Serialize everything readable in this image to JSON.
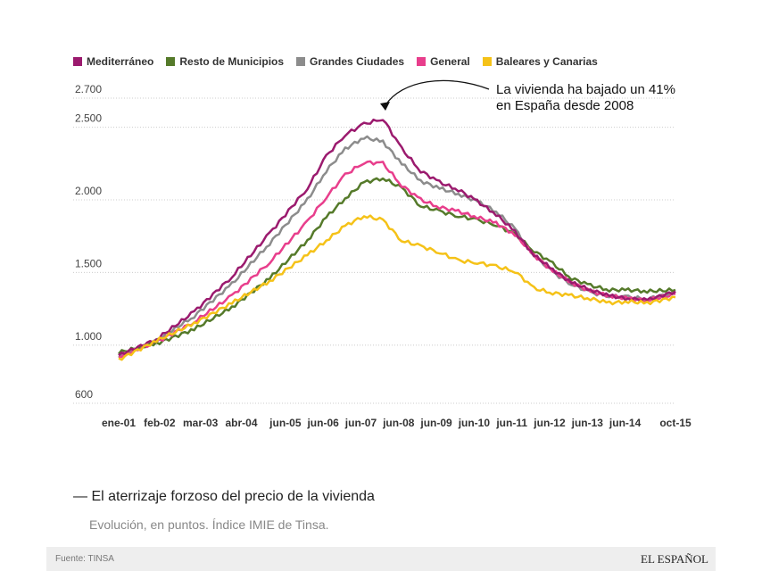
{
  "chart_data": {
    "type": "line",
    "title": "El aterrizaje forzoso del precio de la vivienda",
    "subtitle": "Evolución, en puntos. Índice IMIE de Tinsa.",
    "source": "Fuente: TINSA",
    "brand": "EL ESPAÑOL",
    "annotation": [
      "La vivienda ha bajado un 41%",
      "en España desde 2008"
    ],
    "legend_position": "top-left",
    "grid": true,
    "ylim": [
      600,
      2700
    ],
    "y_ticks": [
      {
        "v": 2700,
        "label": "2.700"
      },
      {
        "v": 2500,
        "label": "2.500"
      },
      {
        "v": 2000,
        "label": "2.000"
      },
      {
        "v": 1500,
        "label": "1.500"
      },
      {
        "v": 1000,
        "label": "1.000"
      },
      {
        "v": 600,
        "label": "600"
      }
    ],
    "x_ticks": [
      {
        "d": "2001-01",
        "label": "ene-01"
      },
      {
        "d": "2002-02",
        "label": "feb-02"
      },
      {
        "d": "2003-03",
        "label": "mar-03"
      },
      {
        "d": "2004-04",
        "label": "abr-04"
      },
      {
        "d": "2005-06",
        "label": "jun-05"
      },
      {
        "d": "2006-06",
        "label": "jun-06"
      },
      {
        "d": "2007-06",
        "label": "jun-07"
      },
      {
        "d": "2008-06",
        "label": "jun-08"
      },
      {
        "d": "2009-06",
        "label": "jun-09"
      },
      {
        "d": "2010-06",
        "label": "jun-10"
      },
      {
        "d": "2011-06",
        "label": "jun-11"
      },
      {
        "d": "2012-06",
        "label": "jun-12"
      },
      {
        "d": "2013-06",
        "label": "jun-13"
      },
      {
        "d": "2014-06",
        "label": "jun-14"
      },
      {
        "d": "2015-10",
        "label": "oct-15"
      }
    ],
    "x": [
      "2001-01",
      "2002-01",
      "2003-01",
      "2004-01",
      "2005-01",
      "2006-01",
      "2006-07",
      "2007-01",
      "2007-07",
      "2008-01",
      "2008-07",
      "2009-01",
      "2009-07",
      "2010-01",
      "2010-07",
      "2011-01",
      "2011-07",
      "2012-01",
      "2012-07",
      "2013-01",
      "2013-07",
      "2014-01",
      "2014-07",
      "2015-01",
      "2015-10"
    ],
    "series": [
      {
        "name": "Mediterráneo",
        "color": "#9b1a6e",
        "values": [
          930,
          1040,
          1230,
          1470,
          1770,
          2080,
          2300,
          2450,
          2520,
          2560,
          2350,
          2200,
          2120,
          2070,
          1990,
          1900,
          1780,
          1620,
          1520,
          1430,
          1380,
          1340,
          1320,
          1310,
          1370
        ]
      },
      {
        "name": "Resto de Municipios",
        "color": "#557a2a",
        "values": [
          950,
          1010,
          1110,
          1260,
          1460,
          1720,
          1880,
          2010,
          2120,
          2150,
          2080,
          1960,
          1920,
          1890,
          1860,
          1830,
          1760,
          1650,
          1560,
          1460,
          1410,
          1380,
          1380,
          1370,
          1380
        ]
      },
      {
        "name": "Grandes Ciudades",
        "color": "#8c8c8c",
        "values": [
          925,
          1030,
          1200,
          1420,
          1700,
          2000,
          2200,
          2350,
          2430,
          2400,
          2250,
          2130,
          2080,
          2040,
          1990,
          1920,
          1800,
          1620,
          1500,
          1420,
          1360,
          1340,
          1330,
          1320,
          1360
        ]
      },
      {
        "name": "General",
        "color": "#e83e8c",
        "values": [
          920,
          1020,
          1160,
          1340,
          1570,
          1850,
          2020,
          2170,
          2260,
          2250,
          2100,
          2000,
          1950,
          1920,
          1880,
          1840,
          1760,
          1620,
          1510,
          1430,
          1370,
          1340,
          1320,
          1310,
          1350
        ]
      },
      {
        "name": "Baleares y Canarias",
        "color": "#f5c218",
        "values": [
          900,
          1030,
          1150,
          1290,
          1440,
          1620,
          1720,
          1820,
          1890,
          1860,
          1720,
          1680,
          1640,
          1580,
          1570,
          1540,
          1510,
          1390,
          1360,
          1340,
          1320,
          1290,
          1300,
          1290,
          1330
        ]
      }
    ]
  }
}
